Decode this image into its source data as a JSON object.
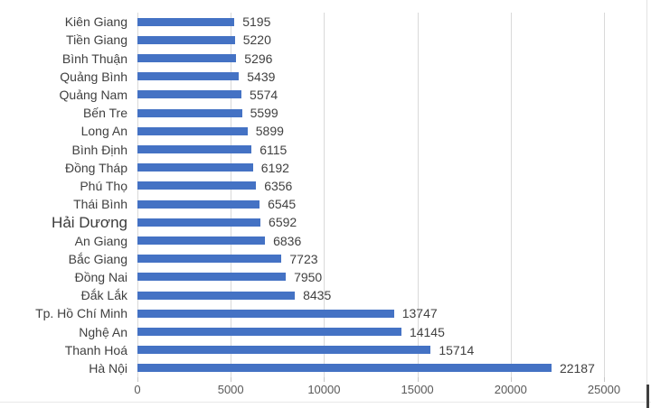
{
  "chart_data": {
    "type": "bar",
    "orientation": "horizontal",
    "title": "",
    "xlabel": "",
    "ylabel": "",
    "categories": [
      "Kiên Giang",
      "Tiền Giang",
      "Bình Thuận",
      "Quảng Bình",
      "Quảng Nam",
      "Bến Tre",
      "Long An",
      "Bình Định",
      "Đồng Tháp",
      "Phú Thọ",
      "Thái Bình",
      "Hải Dương",
      "An Giang",
      "Bắc Giang",
      "Đồng Nai",
      "Đắk Lắk",
      "Tp. Hồ Chí Minh",
      "Nghệ An",
      "Thanh Hoá",
      "Hà Nội"
    ],
    "values": [
      5195,
      5220,
      5296,
      5439,
      5574,
      5599,
      5899,
      6115,
      6192,
      6356,
      6545,
      6592,
      6836,
      7723,
      7950,
      8435,
      13747,
      14145,
      15714,
      22187
    ],
    "data_label_position": "outside-end",
    "xlim": [
      0,
      25000
    ],
    "x_ticks": [
      0,
      5000,
      10000,
      15000,
      20000,
      25000
    ],
    "grid": "vertical",
    "legend": "none",
    "emphasized_category": "Hải Dương",
    "colors": {
      "bar": "#4472C4",
      "labels": "#404040",
      "axis_labels": "#595959",
      "gridlines": "#d9d9d9"
    }
  }
}
